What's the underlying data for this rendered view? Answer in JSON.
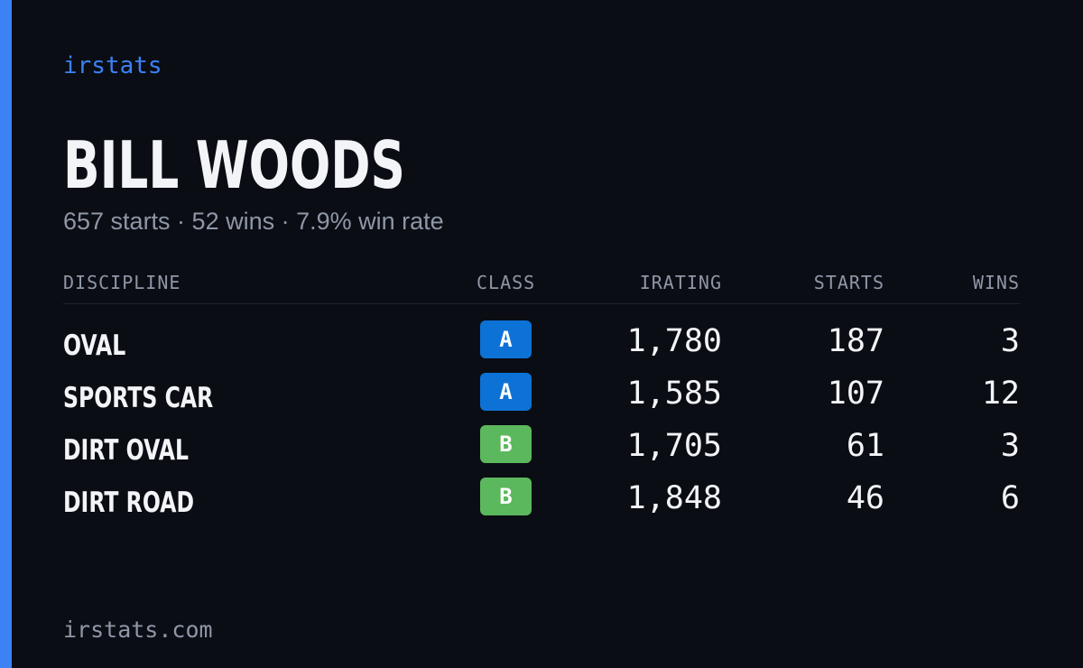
{
  "brand": "irstats",
  "player": {
    "name": "BILL WOODS",
    "summary": "657 starts · 52 wins · 7.9% win rate"
  },
  "table": {
    "headers": {
      "discipline": "DISCIPLINE",
      "class": "CLASS",
      "irating": "IRATING",
      "starts": "STARTS",
      "wins": "WINS"
    },
    "rows": [
      {
        "discipline": "OVAL",
        "class": "A",
        "irating": "1,780",
        "starts": "187",
        "wins": "3"
      },
      {
        "discipline": "SPORTS CAR",
        "class": "A",
        "irating": "1,585",
        "starts": "107",
        "wins": "12"
      },
      {
        "discipline": "DIRT OVAL",
        "class": "B",
        "irating": "1,705",
        "starts": "61",
        "wins": "3"
      },
      {
        "discipline": "DIRT ROAD",
        "class": "B",
        "irating": "1,848",
        "starts": "46",
        "wins": "6"
      }
    ]
  },
  "footer": "irstats.com",
  "colors": {
    "background": "#0a0d14",
    "accent": "#3b82f6",
    "class_a": "#0d72d6",
    "class_b": "#5cb85c",
    "text_primary": "#f3f4f7",
    "text_muted": "#8f97a6"
  }
}
